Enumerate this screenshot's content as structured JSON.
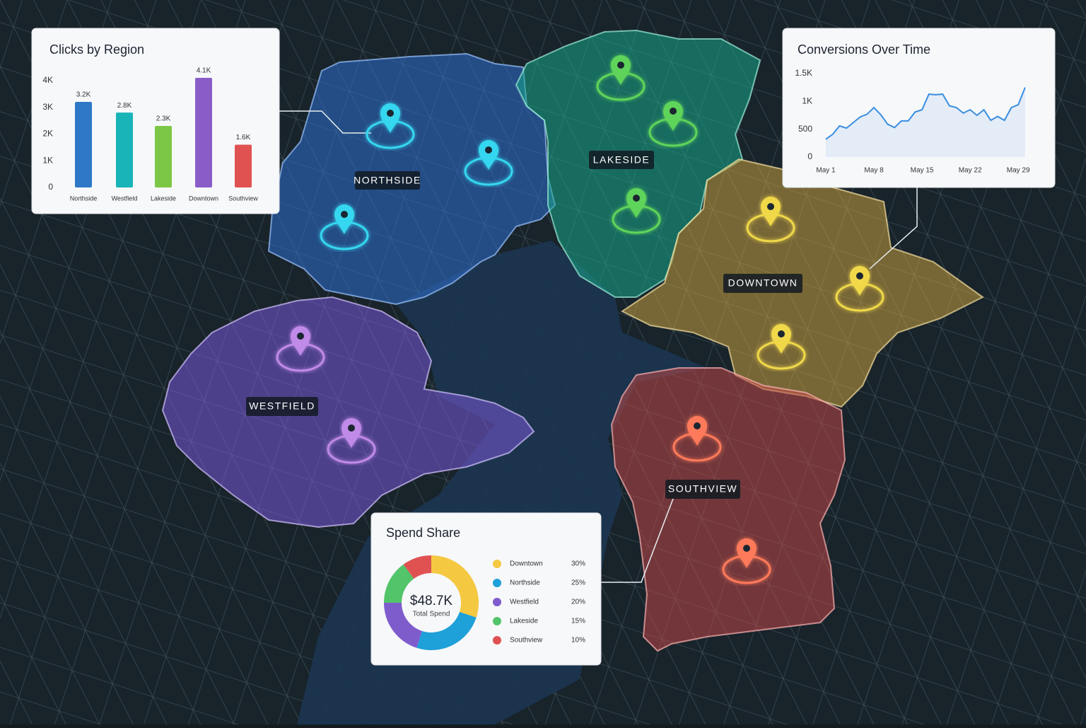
{
  "map": {
    "regions": [
      {
        "label": "NORTHSIDE"
      },
      {
        "label": "LAKESIDE"
      },
      {
        "label": "DOWNTOWN"
      },
      {
        "label": "WESTFIELD"
      },
      {
        "label": "SOUTHVIEW"
      }
    ]
  },
  "chart_data": [
    {
      "type": "bar",
      "title": "Clicks by Region",
      "categories": [
        "Northside",
        "Westfield",
        "Lakeside",
        "Downtown",
        "Southview"
      ],
      "values": [
        3200,
        2800,
        2300,
        4100,
        1600
      ],
      "value_labels": [
        "3.2K",
        "2.8K",
        "2.3K",
        "4.1K",
        "1.6K"
      ],
      "colors": [
        "#2f78c8",
        "#18b4b8",
        "#7cc846",
        "#8a5cc8",
        "#e05252"
      ],
      "ylim": [
        0,
        4100
      ],
      "yticks": [
        0,
        {
          "value": 1000,
          "label": "1K"
        },
        {
          "value": 2000,
          "label": "2K"
        },
        {
          "value": 3000,
          "label": "3K"
        },
        {
          "value": 4000,
          "label": "4K"
        }
      ]
    },
    {
      "type": "line",
      "title": "Conversions Over Time",
      "categories": [
        "May 1",
        null,
        null,
        null,
        null,
        null,
        null,
        "May 8",
        null,
        null,
        null,
        null,
        null,
        null,
        "May 15",
        null,
        null,
        null,
        null,
        null,
        null,
        "May 22",
        null,
        null,
        null,
        null,
        null,
        null,
        "May 29",
        null
      ],
      "values": [
        320,
        410,
        560,
        520,
        620,
        720,
        770,
        890,
        760,
        590,
        530,
        650,
        650,
        810,
        850,
        1130,
        1120,
        1130,
        920,
        890,
        790,
        850,
        750,
        850,
        660,
        730,
        660,
        890,
        940,
        1250
      ],
      "color": "#3a8ee0",
      "ylim": [
        0,
        1500
      ],
      "yticks": [
        0,
        500,
        {
          "value": 1000,
          "label": "1K"
        },
        {
          "value": 1500,
          "label": "1.5K"
        }
      ]
    },
    {
      "type": "pie",
      "title": "Spend Share",
      "center_label": "$48.7K",
      "center_sublabel": "Total Spend",
      "categories": [
        "Downtown",
        "Northside",
        "Westfield",
        "Lakeside",
        "Southview"
      ],
      "values": [
        30,
        25,
        20,
        15,
        10
      ],
      "value_labels": [
        "30%",
        "25%",
        "20%",
        "15%",
        "10%"
      ],
      "colors": [
        "#f5c842",
        "#1ea0d8",
        "#7e5ccc",
        "#52c46a",
        "#e05252"
      ]
    }
  ]
}
